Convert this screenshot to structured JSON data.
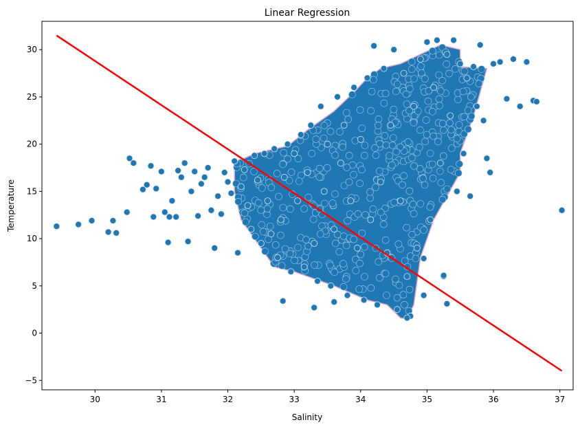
{
  "chart_data": {
    "type": "scatter",
    "title": "Linear Regression",
    "xlabel": "Salinity",
    "ylabel": "Temperature",
    "xlim": [
      29.2,
      37.2
    ],
    "ylim": [
      -6.0,
      33.0
    ],
    "x_ticks": [
      30,
      31,
      32,
      33,
      34,
      35,
      36,
      37
    ],
    "y_ticks": [
      -5,
      0,
      5,
      10,
      15,
      20,
      25,
      30
    ],
    "grid": false,
    "colors": {
      "points": "#1f77b4",
      "point_edge": "#e6a6c8",
      "regression": "#ff0000"
    },
    "regression_line": {
      "x": [
        29.42,
        37.03
      ],
      "y": [
        31.5,
        -4.0
      ]
    },
    "series": [
      {
        "x": [
          29.42,
          29.75,
          29.95,
          30.2,
          30.27,
          30.32,
          30.48,
          30.52,
          30.58,
          30.72,
          30.78,
          30.84,
          30.88,
          30.92,
          31.0,
          31.05,
          31.1,
          31.12,
          31.16,
          31.22,
          31.25,
          31.3,
          31.35,
          31.4,
          31.45,
          31.5,
          31.55,
          31.6,
          31.65,
          31.7,
          31.75,
          31.8,
          31.85,
          31.9,
          31.95,
          32.0,
          32.05,
          32.1,
          32.15,
          32.2,
          32.25,
          32.3,
          32.35,
          32.4,
          32.45,
          32.5,
          32.55,
          32.6,
          32.65,
          32.7,
          32.75,
          32.8,
          32.85,
          32.9,
          32.95,
          33.0,
          33.05,
          33.1,
          33.15,
          33.2,
          33.25,
          33.3,
          33.35,
          33.4,
          33.45,
          33.5,
          33.55,
          33.6,
          33.65,
          33.7,
          33.75,
          33.8,
          33.85,
          33.9,
          33.95,
          34.0,
          34.05,
          34.1,
          34.15,
          34.2,
          34.25,
          34.3,
          34.35,
          34.4,
          34.45,
          34.5,
          34.55,
          34.6,
          34.65,
          34.7,
          34.75,
          34.8,
          34.85,
          34.9,
          34.95,
          35.0,
          35.05,
          35.1,
          35.15,
          35.2,
          35.25,
          35.3,
          35.35,
          35.4,
          35.45,
          35.5,
          35.55,
          35.6,
          35.65,
          35.7,
          35.75,
          35.8,
          35.85,
          35.9,
          35.95,
          36.0,
          36.1,
          36.2,
          36.3,
          36.4,
          36.5,
          36.6,
          36.65,
          37.03,
          32.83,
          33.3,
          33.6,
          34.7,
          35.3,
          34.95,
          35.25
        ],
        "y": [
          11.3,
          11.5,
          11.9,
          10.7,
          11.9,
          10.6,
          12.8,
          18.5,
          18.0,
          15.2,
          15.7,
          17.7,
          12.3,
          15.3,
          17.1,
          12.8,
          9.6,
          12.3,
          14.0,
          12.3,
          17.2,
          16.5,
          18.0,
          9.7,
          15.0,
          17.1,
          12.4,
          15.8,
          16.5,
          17.5,
          13.0,
          9.0,
          14.5,
          12.6,
          17.0,
          16.0,
          14.8,
          18.2,
          8.5,
          15.5,
          17.3,
          13.5,
          11.0,
          18.8,
          16.2,
          9.5,
          19.0,
          14.0,
          10.5,
          19.5,
          8.0,
          12.0,
          16.5,
          20.0,
          6.5,
          19.0,
          14.0,
          21.0,
          7.0,
          17.0,
          22.0,
          9.5,
          5.5,
          24.0,
          15.0,
          20.0,
          5.0,
          11.0,
          25.0,
          18.0,
          22.0,
          4.0,
          14.0,
          26.0,
          9.0,
          20.5,
          3.5,
          27.0,
          12.0,
          30.4,
          3.0,
          16.0,
          28.0,
          8.5,
          22.0,
          30.0,
          2.5,
          14.0,
          27.5,
          6.0,
          1.8,
          24.0,
          9.0,
          29.0,
          4.0,
          30.8,
          12.0,
          26.0,
          31.0,
          18.0,
          6.0,
          29.5,
          23.0,
          31.0,
          15.0,
          28.5,
          19.0,
          27.0,
          14.5,
          28.2,
          24.0,
          30.5,
          22.5,
          18.5,
          17.0,
          28.5,
          28.7,
          24.8,
          29.0,
          24.0,
          28.7,
          24.6,
          24.5,
          13.0,
          3.4,
          2.7,
          3.3,
          1.6,
          3.1,
          7.9,
          6.1
        ]
      }
    ]
  }
}
